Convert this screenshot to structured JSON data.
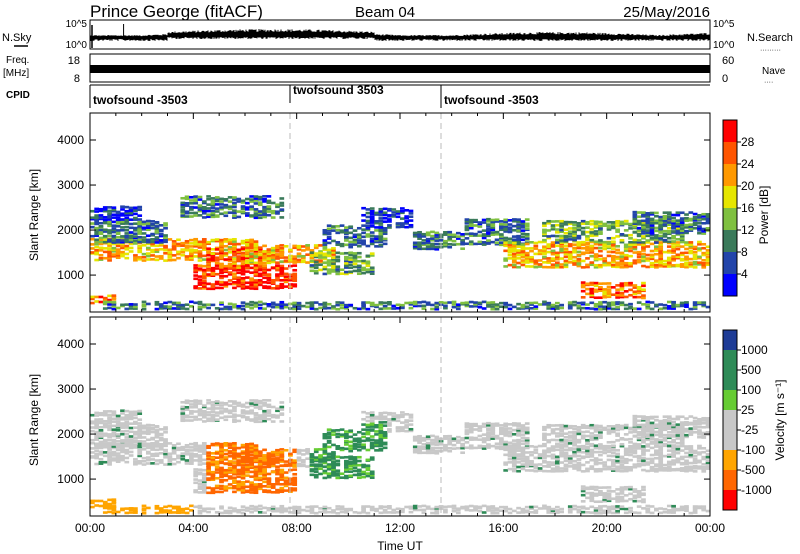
{
  "header": {
    "station": "Prince George (fitACF)",
    "beam": "Beam 04",
    "date": "25/May/2016"
  },
  "left_labels": {
    "nsky": "N.Sky",
    "freq_line1": "Freq.",
    "freq_line2": "[MHz]",
    "cpid": "CPID"
  },
  "right_labels": {
    "nsearch": "N.Search",
    "nsearch_dots": "·········",
    "nave": "Nave",
    "nave_dots": "····"
  },
  "colors": {
    "power": [
      "#0000ff",
      "#2244aa",
      "#3a7a5a",
      "#7fc040",
      "#e6e600",
      "#ff9900",
      "#ff5500",
      "#ff0000"
    ],
    "velocity": [
      "#ff0000",
      "#ff6600",
      "#ffa500",
      "#c8c8c8",
      "#c8c8c8",
      "#66cc33",
      "#2e8b57",
      "#1e3c96"
    ],
    "grey": "#c8c8c8"
  },
  "chart_data": [
    {
      "name": "nsky-nsearch",
      "type": "line",
      "x_ticks": [
        "00:00",
        "04:00",
        "08:00",
        "12:00",
        "16:00",
        "20:00",
        "00:00"
      ],
      "left_axis_ticks": [
        "10^5",
        "10^0"
      ],
      "right_axis_ticks": [
        "10^5",
        "10^0"
      ]
    },
    {
      "name": "freq-nave",
      "type": "line",
      "left_axis_ticks": [
        "18",
        "8"
      ],
      "right_axis_ticks": [
        "60",
        "0"
      ],
      "freq_value_mhz": 11
    },
    {
      "name": "cpid",
      "type": "table",
      "segments": [
        {
          "label": "twofsound -3503",
          "start_h": 0,
          "end_h": 8
        },
        {
          "label": "twofsound 3503",
          "start_h": 8,
          "end_h": 14
        },
        {
          "label": "twofsound -3503",
          "start_h": 14,
          "end_h": 24
        }
      ]
    },
    {
      "name": "power",
      "type": "heatmap",
      "ylabel": "Slant Range [km]",
      "yticks": [
        1000,
        2000,
        3000,
        4000
      ],
      "ylim": [
        180,
        4600
      ],
      "xlim_h": [
        0,
        24
      ],
      "colorbar_label": "Power [dB]",
      "colorbar_ticks": [
        "4",
        "8",
        "12",
        "16",
        "20",
        "24",
        "28"
      ],
      "colorbar_range": [
        0,
        32
      ],
      "dashed_lines_h": [
        8,
        14
      ]
    },
    {
      "name": "velocity",
      "type": "heatmap",
      "ylabel": "Slant Range [km]",
      "xlabel": "Time UT",
      "yticks": [
        1000,
        2000,
        3000,
        4000
      ],
      "ylim": [
        180,
        4600
      ],
      "xlim_h": [
        0,
        24
      ],
      "x_ticks": [
        "00:00",
        "04:00",
        "08:00",
        "12:00",
        "16:00",
        "20:00",
        "00:00"
      ],
      "colorbar_label": "Velocity [m s⁻¹]",
      "colorbar_ticks": [
        "1000",
        "500",
        "100",
        "25",
        "-25",
        "-100",
        "-500",
        "-1000"
      ],
      "dashed_lines_h": [
        8,
        14
      ]
    }
  ]
}
